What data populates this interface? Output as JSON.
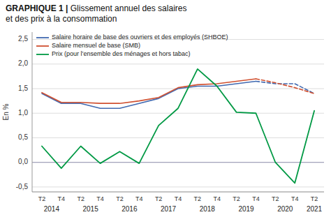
{
  "chart_data": {
    "type": "line",
    "title": "GRAPHIQUE 1 | Glissement annuel des salaires",
    "subtitle": "et des prix à la consommation",
    "y_label": "En %",
    "categories": [
      "T2",
      "T4",
      "T2",
      "T4",
      "T2",
      "T4",
      "T2",
      "T4",
      "T2",
      "T4",
      "T2",
      "T4",
      "T2",
      "T4",
      "T2"
    ],
    "series": [
      {
        "name": "Salaire horaire de base des ouvriers et des employés (SHBOE)",
        "color": "#4169b0",
        "line_style": "solid",
        "values": [
          1.4,
          1.2,
          1.2,
          1.1,
          1.1,
          1.2,
          1.3,
          1.5,
          1.55,
          1.55,
          1.6,
          1.65,
          null,
          null,
          null
        ]
      },
      {
        "name": "Salaire horaire de base des ouvriers et des employés (SHBOE)",
        "color": "#4169b0",
        "line_style": "dashed",
        "values": [
          null,
          null,
          null,
          null,
          null,
          null,
          null,
          null,
          null,
          null,
          null,
          1.65,
          1.6,
          1.6,
          1.4
        ]
      },
      {
        "name": "Salaire mensuel de base (SMB)",
        "color": "#d05030",
        "line_style": "solid",
        "values": [
          1.42,
          1.22,
          1.22,
          1.2,
          1.2,
          1.25,
          1.32,
          1.52,
          1.58,
          1.6,
          1.65,
          1.7,
          null,
          null,
          null
        ]
      },
      {
        "name": "Salaire mensuel de base (SMB)",
        "color": "#d05030",
        "line_style": "dashed",
        "values": [
          null,
          null,
          null,
          null,
          null,
          null,
          null,
          null,
          null,
          null,
          null,
          1.7,
          1.62,
          1.52,
          1.4
        ]
      },
      {
        "name": "Prix (pour l’ensemble des ménages et hors tabac)",
        "color": "#009944",
        "line_style": "solid",
        "values": [
          0.33,
          -0.12,
          0.33,
          -0.02,
          0.22,
          -0.02,
          0.75,
          1.1,
          1.9,
          1.55,
          1.02,
          1.0,
          0.0,
          -0.42,
          1.05
        ]
      }
    ],
    "annotations": [
      {
        "text": "2014",
        "x": 0.5
      },
      {
        "text": "2015",
        "x": 2.5
      },
      {
        "text": "2016",
        "x": 4.5
      },
      {
        "text": "2017",
        "x": 6.5
      },
      {
        "text": "2018",
        "x": 8.5
      },
      {
        "text": "2019",
        "x": 10.5
      },
      {
        "text": "2020",
        "x": 12.5
      },
      {
        "text": "2021",
        "x": 14.0
      }
    ],
    "ylim": [
      -0.6,
      2.65
    ],
    "yticks": [
      {
        "value": -0.5,
        "label": "-0,5"
      },
      {
        "value": 0.0,
        "label": "0,0"
      },
      {
        "value": 0.5,
        "label": "0,5"
      },
      {
        "value": 1.0,
        "label": "1,0"
      },
      {
        "value": 1.5,
        "label": "1,5"
      },
      {
        "value": 2.0,
        "label": "2,0"
      },
      {
        "value": 2.5,
        "label": "2,5"
      }
    ],
    "grid": true,
    "legend": "upper left"
  }
}
